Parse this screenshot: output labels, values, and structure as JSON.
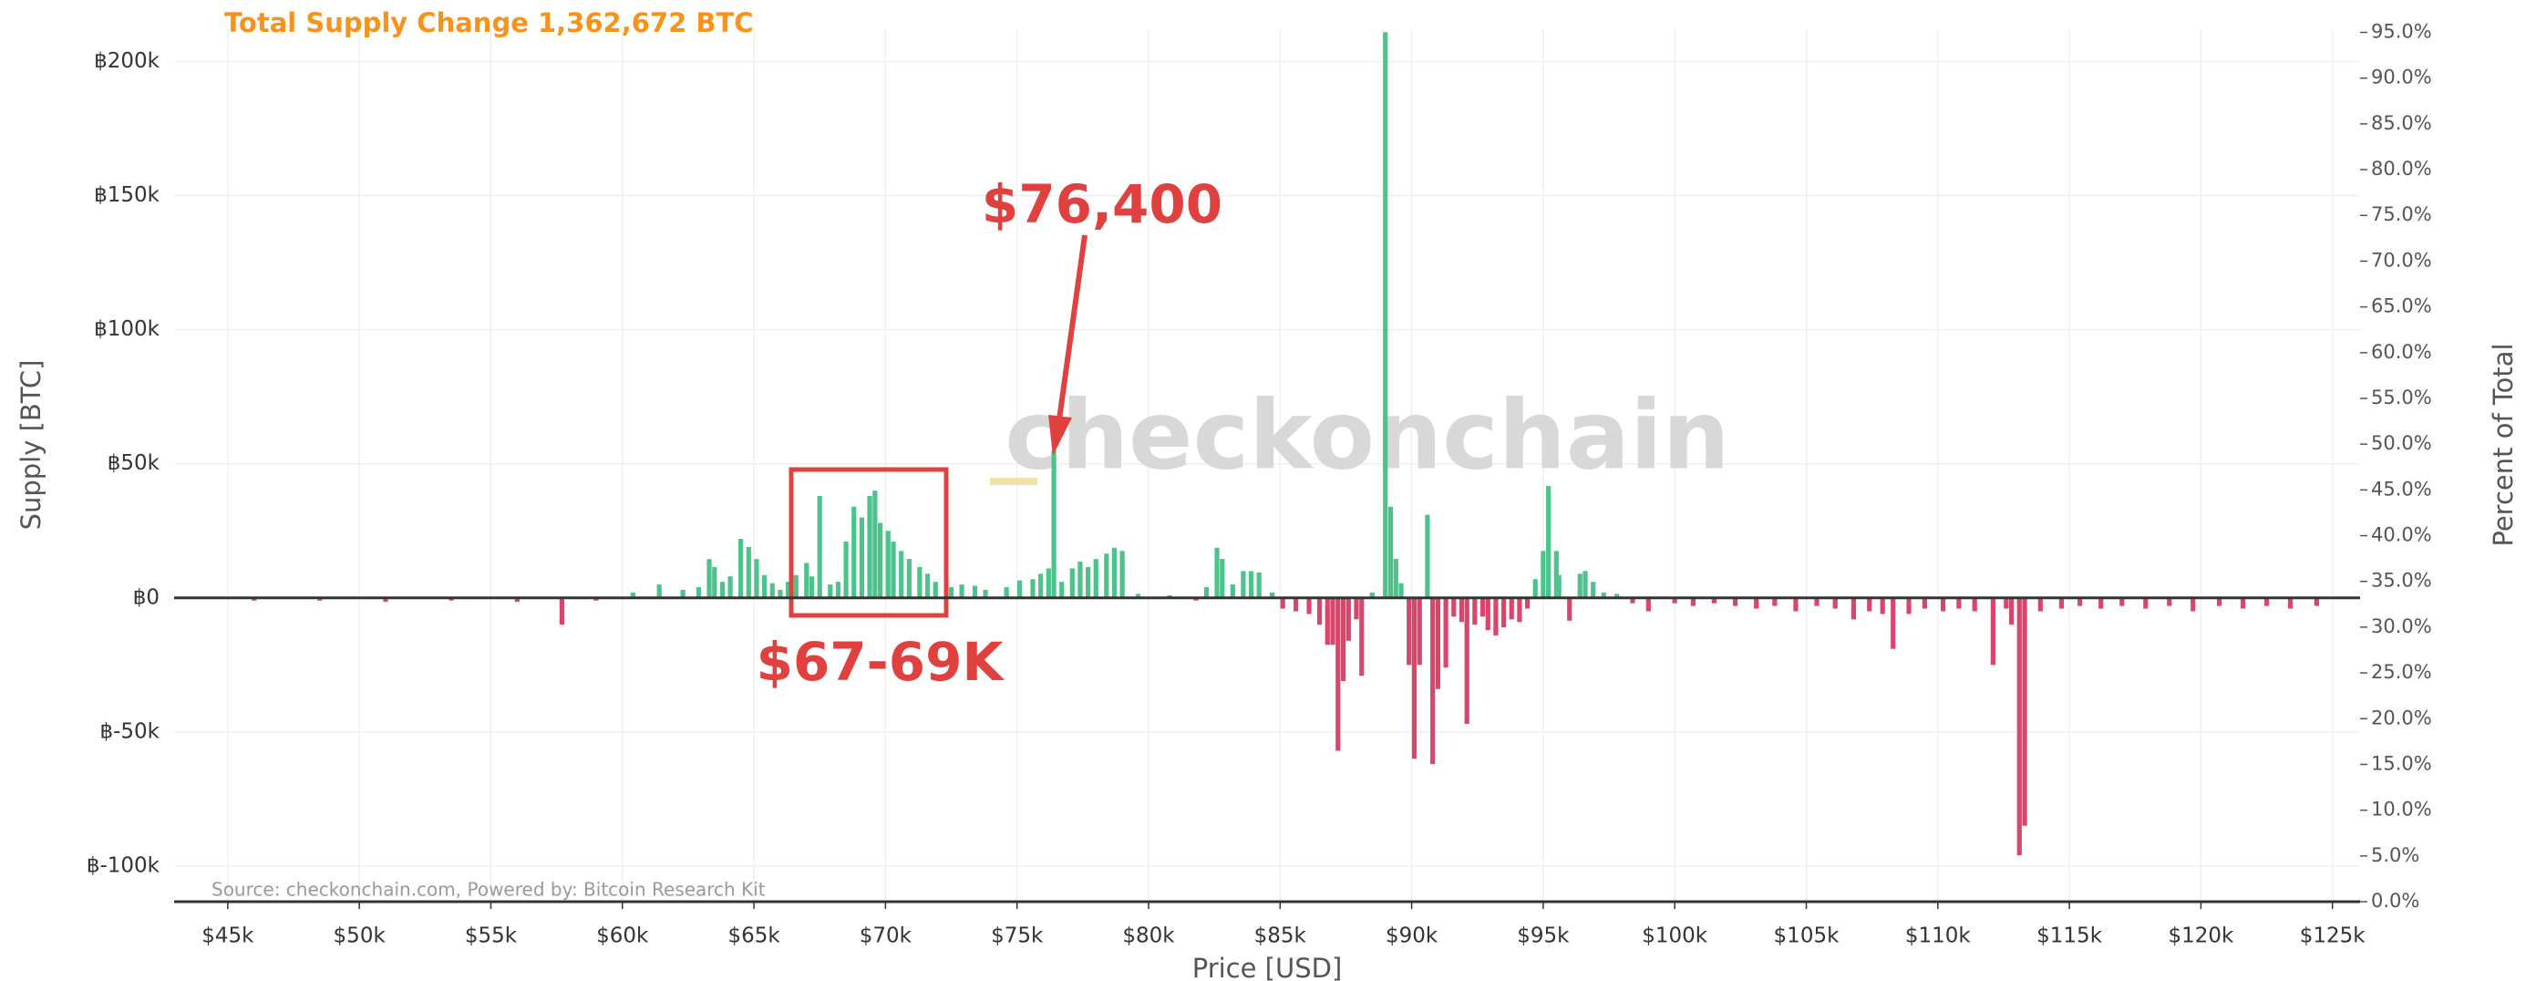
{
  "chart_data": {
    "type": "bar",
    "title": "Total Supply Change 1,362,672 BTC",
    "xlabel": "Price [USD]",
    "ylabel": "Supply [BTC]",
    "y2label": "Percent of Total",
    "watermark": "checkonchain",
    "source": "Source: checkonchain.com, Powered by: Bitcoin Research Kit",
    "annotations": [
      "$76,400",
      "$67-69K"
    ],
    "positive_color": "#4cc38a",
    "negative_color": "#d9456b",
    "grid": true,
    "xlim": [
      42960,
      126050
    ],
    "xticks": [
      {
        "value": 45000,
        "label": "$45k"
      },
      {
        "value": 50000,
        "label": "$50k"
      },
      {
        "value": 55000,
        "label": "$55k"
      },
      {
        "value": 60000,
        "label": "$60k"
      },
      {
        "value": 65000,
        "label": "$65k"
      },
      {
        "value": 70000,
        "label": "$70k"
      },
      {
        "value": 75000,
        "label": "$75k"
      },
      {
        "value": 80000,
        "label": "$80k"
      },
      {
        "value": 85000,
        "label": "$85k"
      },
      {
        "value": 90000,
        "label": "$90k"
      },
      {
        "value": 95000,
        "label": "$95k"
      },
      {
        "value": 100000,
        "label": "$100k"
      },
      {
        "value": 105000,
        "label": "$105k"
      },
      {
        "value": 110000,
        "label": "$110k"
      },
      {
        "value": 115000,
        "label": "$115k"
      },
      {
        "value": 120000,
        "label": "$120k"
      },
      {
        "value": 125000,
        "label": "$125k"
      }
    ],
    "ylim": [
      -113300,
      212100
    ],
    "yticks": [
      {
        "value": -100000,
        "label": "฿-100k"
      },
      {
        "value": -50000,
        "label": "฿-50k"
      },
      {
        "value": 0,
        "label": "฿0"
      },
      {
        "value": 50000,
        "label": "฿50k"
      },
      {
        "value": 100000,
        "label": "฿100k"
      },
      {
        "value": 150000,
        "label": "฿150k"
      },
      {
        "value": 200000,
        "label": "฿200k"
      }
    ],
    "y2lim": [
      0,
      95.35
    ],
    "y2ticks": [
      {
        "value": 0,
        "label": "0.0%"
      },
      {
        "value": 5,
        "label": "5.0%"
      },
      {
        "value": 10,
        "label": "10.0%"
      },
      {
        "value": 15,
        "label": "15.0%"
      },
      {
        "value": 20,
        "label": "20.0%"
      },
      {
        "value": 25,
        "label": "25.0%"
      },
      {
        "value": 30,
        "label": "30.0%"
      },
      {
        "value": 35,
        "label": "35.0%"
      },
      {
        "value": 40,
        "label": "40.0%"
      },
      {
        "value": 45,
        "label": "45.0%"
      },
      {
        "value": 50,
        "label": "50.0%"
      },
      {
        "value": 55,
        "label": "55.0%"
      },
      {
        "value": 60,
        "label": "60.0%"
      },
      {
        "value": 65,
        "label": "65.0%"
      },
      {
        "value": 70,
        "label": "70.0%"
      },
      {
        "value": 75,
        "label": "75.0%"
      },
      {
        "value": 80,
        "label": "80.0%"
      },
      {
        "value": 85,
        "label": "85.0%"
      },
      {
        "value": 90,
        "label": "90.0%"
      },
      {
        "value": 95,
        "label": "95.0%"
      }
    ],
    "x": [
      46000,
      48500,
      51000,
      53500,
      56000,
      57700,
      59000,
      60400,
      61400,
      62300,
      62900,
      63300,
      63500,
      63800,
      64100,
      64500,
      64800,
      65100,
      65400,
      65700,
      66000,
      66300,
      66600,
      67000,
      67200,
      67500,
      67900,
      68200,
      68500,
      68800,
      69100,
      69400,
      69600,
      69800,
      70100,
      70300,
      70600,
      70900,
      71300,
      71600,
      71900,
      72500,
      72900,
      73400,
      73800,
      74600,
      75100,
      75600,
      75900,
      76200,
      76400,
      76700,
      77100,
      77400,
      77700,
      78000,
      78400,
      78700,
      79000,
      79600,
      80800,
      81800,
      82200,
      82600,
      82800,
      83200,
      83600,
      83900,
      84200,
      84700,
      85100,
      85600,
      86100,
      86500,
      86800,
      87000,
      87200,
      87400,
      87600,
      87900,
      88100,
      88500,
      89000,
      89200,
      89400,
      89600,
      89900,
      90100,
      90300,
      90600,
      90800,
      91000,
      91300,
      91600,
      91900,
      92100,
      92400,
      92700,
      92900,
      93200,
      93500,
      93800,
      94100,
      94400,
      94700,
      95000,
      95200,
      95500,
      95600,
      96000,
      96400,
      96600,
      96900,
      97300,
      97800,
      98400,
      99000,
      100000,
      100700,
      101500,
      102300,
      103100,
      103800,
      104600,
      105400,
      106100,
      106800,
      107400,
      107900,
      108300,
      108900,
      109500,
      110200,
      110800,
      111400,
      112100,
      112600,
      112800,
      113100,
      113300,
      113900,
      114700,
      115400,
      116200,
      117000,
      117900,
      118800,
      119700,
      120700,
      121600,
      122500,
      123400,
      124400
    ],
    "values": [
      -1000,
      -1000,
      -1500,
      -1000,
      -1500,
      -10000,
      -1000,
      2000,
      5000,
      3000,
      4000,
      14500,
      11500,
      6000,
      8000,
      22000,
      19000,
      14500,
      8500,
      5500,
      3000,
      6000,
      8500,
      13000,
      8000,
      38000,
      5000,
      6000,
      21000,
      34000,
      30000,
      38000,
      40000,
      28000,
      25000,
      21000,
      17500,
      14500,
      11500,
      9000,
      6000,
      4000,
      5000,
      4500,
      3000,
      4000,
      6500,
      7000,
      9000,
      11000,
      55000,
      6000,
      11000,
      13500,
      11500,
      14500,
      16500,
      18700,
      17500,
      1500,
      1000,
      -1000,
      4000,
      18700,
      14500,
      5000,
      10000,
      10000,
      9500,
      2000,
      -4000,
      -5000,
      -6000,
      -10000,
      -17500,
      -17500,
      -57000,
      -31000,
      -16000,
      -8000,
      -29000,
      2000,
      211000,
      34000,
      14500,
      5500,
      -25000,
      -60000,
      -25000,
      31000,
      -62000,
      -34000,
      -26000,
      -7000,
      -9000,
      -47000,
      -10000,
      -7000,
      -12000,
      -14000,
      -11000,
      -8000,
      -9000,
      -4000,
      7000,
      17500,
      41700,
      17500,
      8500,
      -8500,
      9000,
      10000,
      6000,
      2000,
      1500,
      -2000,
      -5000,
      -2000,
      -3000,
      -2000,
      -3000,
      -4000,
      -3000,
      -5000,
      -3000,
      -4000,
      -8000,
      -5000,
      -6000,
      -19000,
      -6000,
      -4000,
      -5000,
      -4000,
      -5000,
      -25000,
      -4000,
      -10000,
      -96000,
      -85000,
      -5000,
      -4000,
      -3000,
      -4000,
      -3000,
      -4000,
      -3000,
      -5000,
      -3000,
      -4000,
      -3000,
      -4000,
      -3000
    ]
  }
}
